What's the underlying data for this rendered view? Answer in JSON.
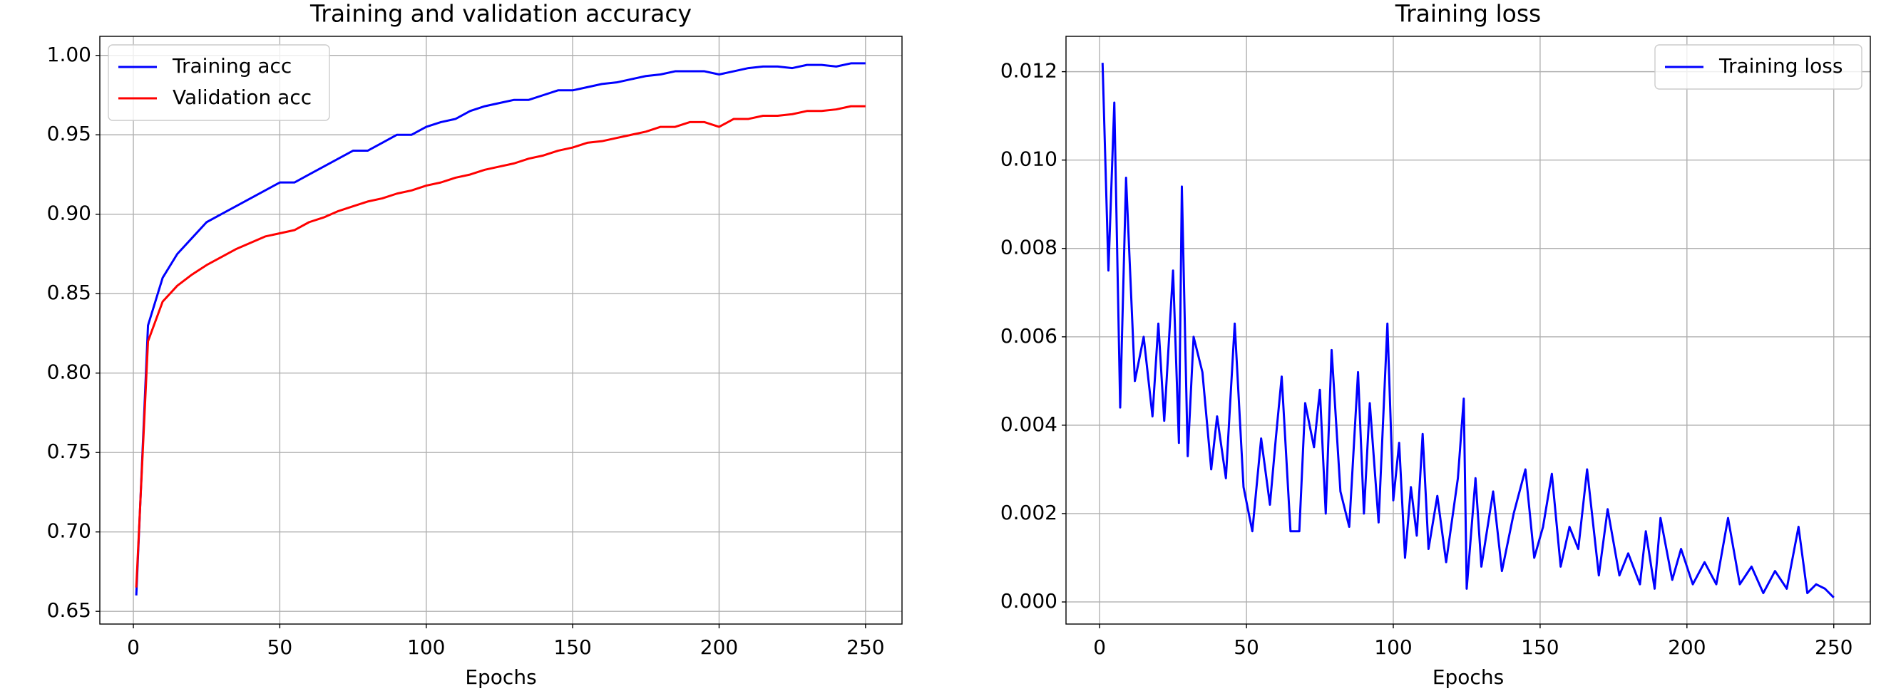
{
  "chart_data": [
    {
      "type": "line",
      "title": "Training and validation accuracy",
      "xlabel": "Epochs",
      "x": [
        1,
        5,
        10,
        15,
        20,
        25,
        30,
        35,
        40,
        45,
        50,
        55,
        60,
        65,
        70,
        75,
        80,
        85,
        90,
        95,
        100,
        105,
        110,
        115,
        120,
        125,
        130,
        135,
        140,
        145,
        150,
        155,
        160,
        165,
        170,
        175,
        180,
        185,
        190,
        195,
        200,
        205,
        210,
        215,
        220,
        225,
        230,
        235,
        240,
        245,
        250
      ],
      "series": [
        {
          "name": "Training acc",
          "color": "#0000ff",
          "values": [
            0.66,
            0.83,
            0.86,
            0.875,
            0.885,
            0.895,
            0.9,
            0.905,
            0.91,
            0.915,
            0.92,
            0.92,
            0.925,
            0.93,
            0.935,
            0.94,
            0.94,
            0.945,
            0.95,
            0.95,
            0.955,
            0.958,
            0.96,
            0.965,
            0.968,
            0.97,
            0.972,
            0.972,
            0.975,
            0.978,
            0.978,
            0.98,
            0.982,
            0.983,
            0.985,
            0.987,
            0.988,
            0.99,
            0.99,
            0.99,
            0.988,
            0.99,
            0.992,
            0.993,
            0.993,
            0.992,
            0.994,
            0.994,
            0.993,
            0.995,
            0.995
          ]
        },
        {
          "name": "Validation acc",
          "color": "#ff0000",
          "values": [
            0.665,
            0.82,
            0.845,
            0.855,
            0.862,
            0.868,
            0.873,
            0.878,
            0.882,
            0.886,
            0.888,
            0.89,
            0.895,
            0.898,
            0.902,
            0.905,
            0.908,
            0.91,
            0.913,
            0.915,
            0.918,
            0.92,
            0.923,
            0.925,
            0.928,
            0.93,
            0.932,
            0.935,
            0.937,
            0.94,
            0.942,
            0.945,
            0.946,
            0.948,
            0.95,
            0.952,
            0.955,
            0.955,
            0.958,
            0.958,
            0.955,
            0.96,
            0.96,
            0.962,
            0.962,
            0.963,
            0.965,
            0.965,
            0.966,
            0.968,
            0.968
          ]
        }
      ],
      "xlim": [
        -11.45,
        262.45
      ],
      "xticks": [
        0,
        50,
        100,
        150,
        200,
        250
      ],
      "ylim": [
        0.642,
        1.012
      ],
      "yticks": [
        0.65,
        {
          "value": 0.7,
          "label": "0.70"
        },
        0.75,
        {
          "value": 0.8,
          "label": "0.80"
        },
        0.85,
        {
          "value": 0.9,
          "label": "0.90"
        },
        0.95,
        {
          "value": 1.0,
          "label": "1.00"
        }
      ],
      "grid": true,
      "legend": "upper-left"
    },
    {
      "type": "line",
      "title": "Training loss",
      "xlabel": "Epochs",
      "x": [
        1,
        3,
        5,
        7,
        9,
        12,
        15,
        18,
        20,
        22,
        25,
        27,
        28,
        30,
        32,
        35,
        38,
        40,
        43,
        46,
        49,
        52,
        55,
        58,
        60,
        62,
        65,
        68,
        70,
        73,
        75,
        77,
        79,
        82,
        85,
        88,
        90,
        92,
        95,
        98,
        100,
        102,
        104,
        106,
        108,
        110,
        112,
        115,
        118,
        122,
        124,
        125,
        128,
        130,
        134,
        137,
        141,
        145,
        148,
        151,
        154,
        157,
        160,
        163,
        166,
        170,
        173,
        177,
        180,
        184,
        186,
        189,
        191,
        195,
        198,
        202,
        206,
        210,
        214,
        218,
        222,
        226,
        230,
        234,
        238,
        241,
        244,
        247,
        250
      ],
      "series": [
        {
          "name": "Training loss",
          "color": "#0000ff",
          "values": [
            0.0122,
            0.0075,
            0.0113,
            0.0044,
            0.0096,
            0.005,
            0.006,
            0.0042,
            0.0063,
            0.0041,
            0.0075,
            0.0036,
            0.0094,
            0.0033,
            0.006,
            0.0052,
            0.003,
            0.0042,
            0.0028,
            0.0063,
            0.0026,
            0.0016,
            0.0037,
            0.0022,
            0.0037,
            0.0051,
            0.0016,
            0.0016,
            0.0045,
            0.0035,
            0.0048,
            0.002,
            0.0057,
            0.0025,
            0.0017,
            0.0052,
            0.002,
            0.0045,
            0.0018,
            0.0063,
            0.0023,
            0.0036,
            0.001,
            0.0026,
            0.0015,
            0.0038,
            0.0012,
            0.0024,
            0.0009,
            0.0028,
            0.0046,
            0.0003,
            0.0028,
            0.0008,
            0.0025,
            0.0007,
            0.002,
            0.003,
            0.001,
            0.0017,
            0.0029,
            0.0008,
            0.0017,
            0.0012,
            0.003,
            0.0006,
            0.0021,
            0.0006,
            0.0011,
            0.0004,
            0.0016,
            0.0003,
            0.0019,
            0.0005,
            0.0012,
            0.0004,
            0.0009,
            0.0004,
            0.0019,
            0.0004,
            0.0008,
            0.0002,
            0.0007,
            0.0003,
            0.0017,
            0.0002,
            0.0004,
            0.0003,
            0.0001
          ]
        }
      ],
      "xlim": [
        -11.45,
        262.45
      ],
      "xticks": [
        0,
        50,
        100,
        150,
        200,
        250
      ],
      "ylim": [
        -0.0005,
        0.0128
      ],
      "yticks": [
        {
          "value": 0,
          "label": "0.000"
        },
        {
          "value": 0.002,
          "label": "0.002"
        },
        {
          "value": 0.004,
          "label": "0.004"
        },
        {
          "value": 0.006,
          "label": "0.006"
        },
        {
          "value": 0.008,
          "label": "0.008"
        },
        {
          "value": 0.01,
          "label": "0.010"
        },
        {
          "value": 0.012,
          "label": "0.012"
        }
      ],
      "grid": true,
      "legend": "upper-right"
    }
  ]
}
